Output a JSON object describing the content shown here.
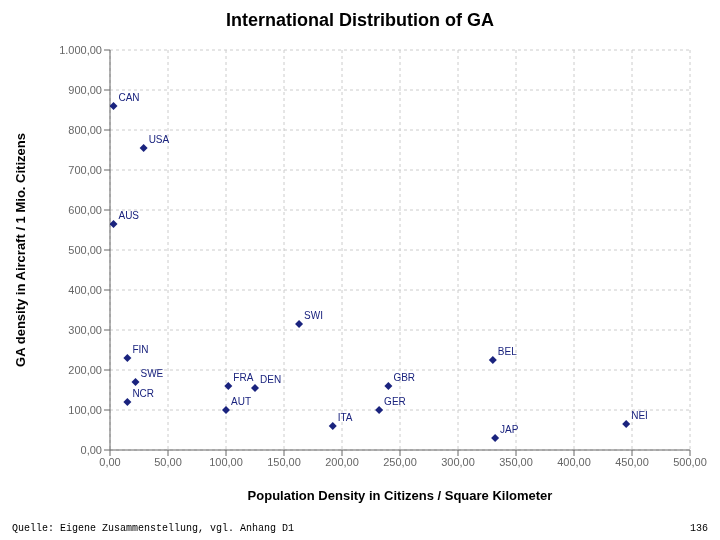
{
  "chart_data": {
    "type": "scatter",
    "title": "International Distribution of GA",
    "xlabel": "Population Density in Citizens / Square Kilometer",
    "ylabel": "GA density in Aircraft / 1 Mio. Citizens",
    "annotations": [
      "Quelle: Eigene Zusammenstellung, vgl. Anhang D1",
      "136"
    ],
    "x": [
      3,
      29,
      3,
      163,
      15,
      330,
      22,
      102,
      125,
      240,
      15,
      100,
      192,
      232,
      332,
      445
    ],
    "values": [
      860,
      755,
      565,
      315,
      230,
      225,
      170,
      160,
      155,
      160,
      120,
      100,
      60,
      100,
      30,
      65
    ],
    "labels": [
      "CAN",
      "USA",
      "AUS",
      "SWI",
      "FIN",
      "BEL",
      "SWE",
      "FRA",
      "DEN",
      "GBR",
      "NCR",
      "AUT",
      "ITA",
      "GER",
      "JAP",
      "NEI"
    ],
    "color": "#1a237e",
    "marker": "diamond",
    "grid": true,
    "xlim": [
      0,
      500
    ],
    "ylim": [
      0,
      1000
    ],
    "xticks": [
      {
        "value": 0,
        "label": "0,00"
      },
      {
        "value": 50,
        "label": "50,00"
      },
      {
        "value": 100,
        "label": "100,00"
      },
      {
        "value": 150,
        "label": "150,00"
      },
      {
        "value": 200,
        "label": "200,00"
      },
      {
        "value": 250,
        "label": "250,00"
      },
      {
        "value": 300,
        "label": "300,00"
      },
      {
        "value": 350,
        "label": "350,00"
      },
      {
        "value": 400,
        "label": "400,00"
      },
      {
        "value": 450,
        "label": "450,00"
      },
      {
        "value": 500,
        "label": "500,00"
      }
    ],
    "yticks": [
      {
        "value": 0,
        "label": "0,00"
      },
      {
        "value": 100,
        "label": "100,00"
      },
      {
        "value": 200,
        "label": "200,00"
      },
      {
        "value": 300,
        "label": "300,00"
      },
      {
        "value": 400,
        "label": "400,00"
      },
      {
        "value": 500,
        "label": "500,00"
      },
      {
        "value": 600,
        "label": "600,00"
      },
      {
        "value": 700,
        "label": "700,00"
      },
      {
        "value": 800,
        "label": "800,00"
      },
      {
        "value": 900,
        "label": "900,00"
      },
      {
        "value": 1000,
        "label": "1.000,00"
      }
    ]
  }
}
